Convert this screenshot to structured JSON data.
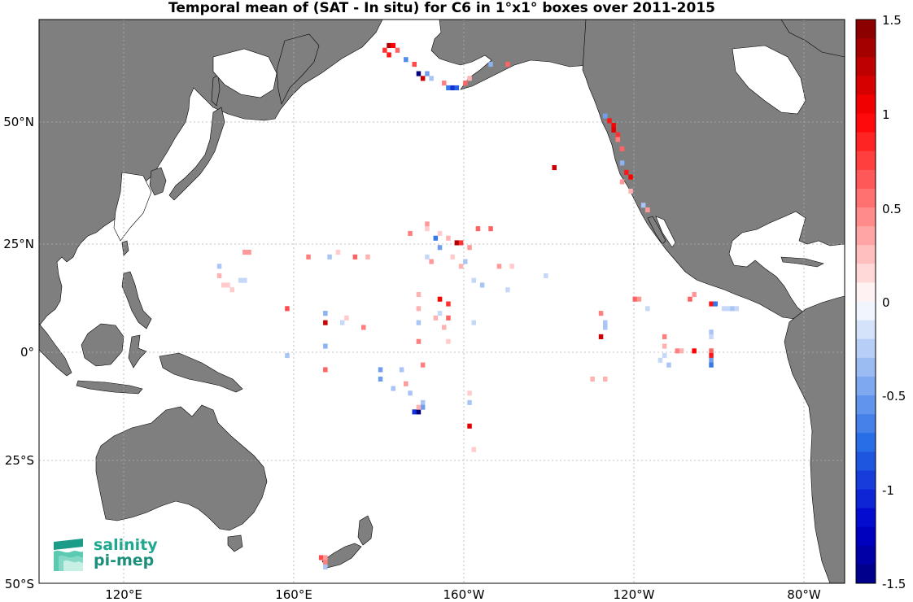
{
  "title": "Temporal mean of (SAT - In situ) for C6 in 1°x1° boxes over 2011-2015",
  "map": {
    "lon_labels": [
      "120°E",
      "160°E",
      "160°W",
      "120°W",
      "80°W"
    ],
    "lat_labels": [
      "50°N",
      "25°N",
      "0°",
      "25°S",
      "50°S"
    ]
  },
  "colorbar": {
    "ticks": [
      "1.5",
      "1",
      "0.5",
      "0",
      "-0.5",
      "-1",
      "-1.5"
    ],
    "range": [
      -1.5,
      1.5
    ],
    "positive_color": "#ff0000",
    "negative_color": "#0000cc",
    "max_color": "#800000",
    "min_color": "#00007f"
  },
  "logo": {
    "line1": "salinity",
    "line2": "pi-mep"
  },
  "colors": {
    "land": "#7f7f7f",
    "ocean": "#ffffff",
    "grid": "#b0b0b0"
  },
  "chart_data": {
    "type": "heatmap",
    "title": "Temporal mean of (SAT - In situ) for C6 in 1°x1° boxes over 2011-2015",
    "x_range_lon": [
      100,
      290
    ],
    "y_range_lat": [
      -50,
      70
    ],
    "value_range": [
      -1.5,
      1.5
    ],
    "cells": [
      {
        "lon": 182,
        "lat": 64,
        "v": 1.3
      },
      {
        "lon": 183,
        "lat": 64,
        "v": 1.0
      },
      {
        "lon": 181,
        "lat": 63,
        "v": 0.8
      },
      {
        "lon": 184,
        "lat": 63,
        "v": 0.6
      },
      {
        "lon": 182,
        "lat": 62,
        "v": 0.9
      },
      {
        "lon": 186,
        "lat": 61,
        "v": -0.6
      },
      {
        "lon": 188,
        "lat": 60,
        "v": 0.7
      },
      {
        "lon": 189,
        "lat": 58,
        "v": -1.5
      },
      {
        "lon": 190,
        "lat": 57,
        "v": 1.2
      },
      {
        "lon": 191,
        "lat": 58,
        "v": -0.5
      },
      {
        "lon": 192,
        "lat": 57,
        "v": -0.3
      },
      {
        "lon": 195,
        "lat": 56,
        "v": 0.5
      },
      {
        "lon": 196,
        "lat": 55,
        "v": -0.7
      },
      {
        "lon": 197,
        "lat": 55,
        "v": -1.0
      },
      {
        "lon": 198,
        "lat": 55,
        "v": -0.8
      },
      {
        "lon": 200,
        "lat": 56,
        "v": 0.6
      },
      {
        "lon": 201,
        "lat": 57,
        "v": 0.3
      },
      {
        "lon": 206,
        "lat": 60,
        "v": -0.4
      },
      {
        "lon": 210,
        "lat": 60,
        "v": 0.6
      },
      {
        "lon": 233,
        "lat": 49,
        "v": -0.5
      },
      {
        "lon": 234,
        "lat": 48,
        "v": 0.9
      },
      {
        "lon": 235,
        "lat": 47,
        "v": 1.0
      },
      {
        "lon": 235,
        "lat": 46,
        "v": 1.1
      },
      {
        "lon": 236,
        "lat": 45,
        "v": 0.8
      },
      {
        "lon": 236,
        "lat": 44,
        "v": 0.5
      },
      {
        "lon": 237,
        "lat": 42,
        "v": 0.6
      },
      {
        "lon": 237,
        "lat": 39,
        "v": -0.4
      },
      {
        "lon": 238,
        "lat": 37,
        "v": 0.9
      },
      {
        "lon": 239,
        "lat": 36,
        "v": 1.0
      },
      {
        "lon": 237,
        "lat": 35,
        "v": 0.4
      },
      {
        "lon": 239,
        "lat": 33,
        "v": 0.3
      },
      {
        "lon": 242,
        "lat": 30,
        "v": -0.3
      },
      {
        "lon": 243,
        "lat": 29,
        "v": 0.4
      },
      {
        "lon": 221,
        "lat": 38,
        "v": 1.2
      },
      {
        "lon": 191,
        "lat": 26,
        "v": 0.4
      },
      {
        "lon": 191,
        "lat": 25,
        "v": 0.2
      },
      {
        "lon": 187,
        "lat": 24,
        "v": 0.5
      },
      {
        "lon": 193,
        "lat": 23,
        "v": -0.7
      },
      {
        "lon": 194,
        "lat": 24,
        "v": 0.2
      },
      {
        "lon": 196,
        "lat": 23,
        "v": 0.3
      },
      {
        "lon": 198,
        "lat": 22,
        "v": 1.3
      },
      {
        "lon": 199,
        "lat": 22,
        "v": 0.8
      },
      {
        "lon": 201,
        "lat": 21,
        "v": 0.4
      },
      {
        "lon": 203,
        "lat": 25,
        "v": 0.6
      },
      {
        "lon": 206,
        "lat": 25,
        "v": 0.6
      },
      {
        "lon": 194,
        "lat": 21,
        "v": -0.5
      },
      {
        "lon": 191,
        "lat": 19,
        "v": -0.2
      },
      {
        "lon": 192,
        "lat": 18,
        "v": 0.4
      },
      {
        "lon": 197,
        "lat": 19,
        "v": 0.2
      },
      {
        "lon": 199,
        "lat": 17,
        "v": 0.3
      },
      {
        "lon": 200,
        "lat": 18,
        "v": -0.3
      },
      {
        "lon": 208,
        "lat": 17,
        "v": 0.4
      },
      {
        "lon": 211,
        "lat": 17,
        "v": 0.2
      },
      {
        "lon": 219,
        "lat": 15,
        "v": -0.2
      },
      {
        "lon": 202,
        "lat": 14,
        "v": -0.2
      },
      {
        "lon": 204,
        "lat": 13,
        "v": -0.3
      },
      {
        "lon": 210,
        "lat": 12,
        "v": -0.2
      },
      {
        "lon": 148,
        "lat": 20,
        "v": 0.4
      },
      {
        "lon": 149,
        "lat": 20,
        "v": 0.4
      },
      {
        "lon": 170,
        "lat": 20,
        "v": 0.2
      },
      {
        "lon": 163,
        "lat": 19,
        "v": 0.5
      },
      {
        "lon": 168,
        "lat": 19,
        "v": -0.3
      },
      {
        "lon": 174,
        "lat": 19,
        "v": 0.6
      },
      {
        "lon": 177,
        "lat": 19,
        "v": 0.3
      },
      {
        "lon": 142,
        "lat": 17,
        "v": -0.3
      },
      {
        "lon": 142,
        "lat": 15,
        "v": 0.3
      },
      {
        "lon": 147,
        "lat": 14,
        "v": -0.2
      },
      {
        "lon": 148,
        "lat": 14,
        "v": -0.2
      },
      {
        "lon": 143,
        "lat": 13,
        "v": 0.2
      },
      {
        "lon": 144,
        "lat": 13,
        "v": 0.2
      },
      {
        "lon": 145,
        "lat": 12,
        "v": 0.2
      },
      {
        "lon": 189,
        "lat": 11,
        "v": 0.3
      },
      {
        "lon": 194,
        "lat": 10,
        "v": 1.0
      },
      {
        "lon": 196,
        "lat": 9,
        "v": 0.8
      },
      {
        "lon": 189,
        "lat": 8,
        "v": 0.3
      },
      {
        "lon": 193,
        "lat": 6,
        "v": 0.3
      },
      {
        "lon": 194,
        "lat": 7,
        "v": -0.2
      },
      {
        "lon": 196,
        "lat": 6,
        "v": 0.6
      },
      {
        "lon": 189,
        "lat": 5,
        "v": -0.3
      },
      {
        "lon": 195,
        "lat": 4,
        "v": 0.3
      },
      {
        "lon": 202,
        "lat": 5,
        "v": -0.2
      },
      {
        "lon": 189,
        "lat": 1,
        "v": 0.5
      },
      {
        "lon": 196,
        "lat": 1,
        "v": 0.2
      },
      {
        "lon": 158,
        "lat": 8,
        "v": 0.7
      },
      {
        "lon": 167,
        "lat": 7,
        "v": -0.4
      },
      {
        "lon": 167,
        "lat": 5,
        "v": 1.2
      },
      {
        "lon": 171,
        "lat": 5,
        "v": -0.2
      },
      {
        "lon": 172,
        "lat": 6,
        "v": 0.2
      },
      {
        "lon": 176,
        "lat": 4,
        "v": 0.5
      },
      {
        "lon": 167,
        "lat": 0,
        "v": -0.4
      },
      {
        "lon": 158,
        "lat": -2,
        "v": -0.3
      },
      {
        "lon": 167,
        "lat": -5,
        "v": 0.6
      },
      {
        "lon": 180,
        "lat": -5,
        "v": -0.5
      },
      {
        "lon": 180,
        "lat": -7,
        "v": -0.5
      },
      {
        "lon": 183,
        "lat": -9,
        "v": -0.3
      },
      {
        "lon": 185,
        "lat": -5,
        "v": -0.3
      },
      {
        "lon": 186,
        "lat": -8,
        "v": 0.4
      },
      {
        "lon": 187,
        "lat": -10,
        "v": -0.3
      },
      {
        "lon": 190,
        "lat": -4,
        "v": 0.5
      },
      {
        "lon": 190,
        "lat": -12,
        "v": -0.3
      },
      {
        "lon": 188,
        "lat": -14,
        "v": -1.0
      },
      {
        "lon": 189,
        "lat": -14,
        "v": -1.5
      },
      {
        "lon": 190,
        "lat": -13,
        "v": -0.5
      },
      {
        "lon": 189,
        "lat": -13,
        "v": 0.3
      },
      {
        "lon": 201,
        "lat": -10,
        "v": 0.2
      },
      {
        "lon": 201,
        "lat": -12,
        "v": -0.3
      },
      {
        "lon": 201,
        "lat": -17,
        "v": 1.1
      },
      {
        "lon": 202,
        "lat": -22,
        "v": 0.2
      },
      {
        "lon": 232,
        "lat": 7,
        "v": 0.5
      },
      {
        "lon": 233,
        "lat": 5,
        "v": -0.3
      },
      {
        "lon": 233,
        "lat": 4,
        "v": -0.3
      },
      {
        "lon": 232,
        "lat": 2,
        "v": 1.2
      },
      {
        "lon": 230,
        "lat": -7,
        "v": 0.3
      },
      {
        "lon": 233,
        "lat": -7,
        "v": 0.3
      },
      {
        "lon": 240,
        "lat": 10,
        "v": 0.6
      },
      {
        "lon": 241,
        "lat": 10,
        "v": 0.4
      },
      {
        "lon": 243,
        "lat": 8,
        "v": -0.2
      },
      {
        "lon": 247,
        "lat": 2,
        "v": 0.5
      },
      {
        "lon": 247,
        "lat": 0,
        "v": 0.3
      },
      {
        "lon": 247,
        "lat": -2,
        "v": -0.2
      },
      {
        "lon": 246,
        "lat": -3,
        "v": -0.2
      },
      {
        "lon": 248,
        "lat": -4,
        "v": -0.3
      },
      {
        "lon": 250,
        "lat": -1,
        "v": 0.5
      },
      {
        "lon": 251,
        "lat": -1,
        "v": 0.3
      },
      {
        "lon": 254,
        "lat": -1,
        "v": 1.0
      },
      {
        "lon": 253,
        "lat": 10,
        "v": 0.6
      },
      {
        "lon": 254,
        "lat": 11,
        "v": 0.4
      },
      {
        "lon": 258,
        "lat": 9,
        "v": 0.9
      },
      {
        "lon": 259,
        "lat": 9,
        "v": -0.7
      },
      {
        "lon": 258,
        "lat": 3,
        "v": -0.3
      },
      {
        "lon": 258,
        "lat": 2,
        "v": -0.2
      },
      {
        "lon": 258,
        "lat": -1,
        "v": 0.6
      },
      {
        "lon": 258,
        "lat": -2,
        "v": 0.9
      },
      {
        "lon": 258,
        "lat": -3,
        "v": -0.5
      },
      {
        "lon": 258,
        "lat": -4,
        "v": -0.7
      },
      {
        "lon": 261,
        "lat": 8,
        "v": -0.2
      },
      {
        "lon": 262,
        "lat": 8,
        "v": -0.2
      },
      {
        "lon": 263,
        "lat": 8,
        "v": -0.3
      },
      {
        "lon": 264,
        "lat": 8,
        "v": -0.2
      },
      {
        "lon": 166,
        "lat": -45,
        "v": 0.7
      },
      {
        "lon": 167,
        "lat": -45,
        "v": 0.4
      },
      {
        "lon": 167,
        "lat": -46,
        "v": 0.5
      },
      {
        "lon": 167,
        "lat": -47,
        "v": -0.3
      }
    ]
  }
}
